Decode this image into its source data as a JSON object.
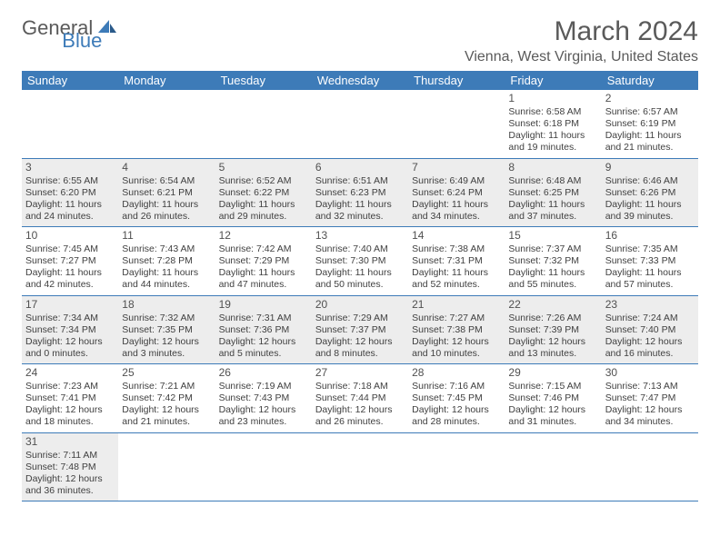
{
  "logo": {
    "general": "General",
    "blue": "Blue"
  },
  "title": "March 2024",
  "location": "Vienna, West Virginia, United States",
  "colors": {
    "header_bg": "#3d7bb8",
    "header_text": "#ffffff",
    "body_text": "#404040",
    "shaded_bg": "#ededed",
    "border": "#3d7bb8",
    "title_color": "#5a5a5a"
  },
  "weekdays": [
    "Sunday",
    "Monday",
    "Tuesday",
    "Wednesday",
    "Thursday",
    "Friday",
    "Saturday"
  ],
  "weeks": [
    [
      {
        "n": "",
        "shaded": false
      },
      {
        "n": "",
        "shaded": false
      },
      {
        "n": "",
        "shaded": false
      },
      {
        "n": "",
        "shaded": false
      },
      {
        "n": "",
        "shaded": false
      },
      {
        "n": "1",
        "shaded": false,
        "sunrise": "6:58 AM",
        "sunset": "6:18 PM",
        "daylight": "11 hours and 19 minutes."
      },
      {
        "n": "2",
        "shaded": false,
        "sunrise": "6:57 AM",
        "sunset": "6:19 PM",
        "daylight": "11 hours and 21 minutes."
      }
    ],
    [
      {
        "n": "3",
        "shaded": true,
        "sunrise": "6:55 AM",
        "sunset": "6:20 PM",
        "daylight": "11 hours and 24 minutes."
      },
      {
        "n": "4",
        "shaded": true,
        "sunrise": "6:54 AM",
        "sunset": "6:21 PM",
        "daylight": "11 hours and 26 minutes."
      },
      {
        "n": "5",
        "shaded": true,
        "sunrise": "6:52 AM",
        "sunset": "6:22 PM",
        "daylight": "11 hours and 29 minutes."
      },
      {
        "n": "6",
        "shaded": true,
        "sunrise": "6:51 AM",
        "sunset": "6:23 PM",
        "daylight": "11 hours and 32 minutes."
      },
      {
        "n": "7",
        "shaded": true,
        "sunrise": "6:49 AM",
        "sunset": "6:24 PM",
        "daylight": "11 hours and 34 minutes."
      },
      {
        "n": "8",
        "shaded": true,
        "sunrise": "6:48 AM",
        "sunset": "6:25 PM",
        "daylight": "11 hours and 37 minutes."
      },
      {
        "n": "9",
        "shaded": true,
        "sunrise": "6:46 AM",
        "sunset": "6:26 PM",
        "daylight": "11 hours and 39 minutes."
      }
    ],
    [
      {
        "n": "10",
        "shaded": false,
        "sunrise": "7:45 AM",
        "sunset": "7:27 PM",
        "daylight": "11 hours and 42 minutes."
      },
      {
        "n": "11",
        "shaded": false,
        "sunrise": "7:43 AM",
        "sunset": "7:28 PM",
        "daylight": "11 hours and 44 minutes."
      },
      {
        "n": "12",
        "shaded": false,
        "sunrise": "7:42 AM",
        "sunset": "7:29 PM",
        "daylight": "11 hours and 47 minutes."
      },
      {
        "n": "13",
        "shaded": false,
        "sunrise": "7:40 AM",
        "sunset": "7:30 PM",
        "daylight": "11 hours and 50 minutes."
      },
      {
        "n": "14",
        "shaded": false,
        "sunrise": "7:38 AM",
        "sunset": "7:31 PM",
        "daylight": "11 hours and 52 minutes."
      },
      {
        "n": "15",
        "shaded": false,
        "sunrise": "7:37 AM",
        "sunset": "7:32 PM",
        "daylight": "11 hours and 55 minutes."
      },
      {
        "n": "16",
        "shaded": false,
        "sunrise": "7:35 AM",
        "sunset": "7:33 PM",
        "daylight": "11 hours and 57 minutes."
      }
    ],
    [
      {
        "n": "17",
        "shaded": true,
        "sunrise": "7:34 AM",
        "sunset": "7:34 PM",
        "daylight": "12 hours and 0 minutes."
      },
      {
        "n": "18",
        "shaded": true,
        "sunrise": "7:32 AM",
        "sunset": "7:35 PM",
        "daylight": "12 hours and 3 minutes."
      },
      {
        "n": "19",
        "shaded": true,
        "sunrise": "7:31 AM",
        "sunset": "7:36 PM",
        "daylight": "12 hours and 5 minutes."
      },
      {
        "n": "20",
        "shaded": true,
        "sunrise": "7:29 AM",
        "sunset": "7:37 PM",
        "daylight": "12 hours and 8 minutes."
      },
      {
        "n": "21",
        "shaded": true,
        "sunrise": "7:27 AM",
        "sunset": "7:38 PM",
        "daylight": "12 hours and 10 minutes."
      },
      {
        "n": "22",
        "shaded": true,
        "sunrise": "7:26 AM",
        "sunset": "7:39 PM",
        "daylight": "12 hours and 13 minutes."
      },
      {
        "n": "23",
        "shaded": true,
        "sunrise": "7:24 AM",
        "sunset": "7:40 PM",
        "daylight": "12 hours and 16 minutes."
      }
    ],
    [
      {
        "n": "24",
        "shaded": false,
        "sunrise": "7:23 AM",
        "sunset": "7:41 PM",
        "daylight": "12 hours and 18 minutes."
      },
      {
        "n": "25",
        "shaded": false,
        "sunrise": "7:21 AM",
        "sunset": "7:42 PM",
        "daylight": "12 hours and 21 minutes."
      },
      {
        "n": "26",
        "shaded": false,
        "sunrise": "7:19 AM",
        "sunset": "7:43 PM",
        "daylight": "12 hours and 23 minutes."
      },
      {
        "n": "27",
        "shaded": false,
        "sunrise": "7:18 AM",
        "sunset": "7:44 PM",
        "daylight": "12 hours and 26 minutes."
      },
      {
        "n": "28",
        "shaded": false,
        "sunrise": "7:16 AM",
        "sunset": "7:45 PM",
        "daylight": "12 hours and 28 minutes."
      },
      {
        "n": "29",
        "shaded": false,
        "sunrise": "7:15 AM",
        "sunset": "7:46 PM",
        "daylight": "12 hours and 31 minutes."
      },
      {
        "n": "30",
        "shaded": false,
        "sunrise": "7:13 AM",
        "sunset": "7:47 PM",
        "daylight": "12 hours and 34 minutes."
      }
    ],
    [
      {
        "n": "31",
        "shaded": true,
        "sunrise": "7:11 AM",
        "sunset": "7:48 PM",
        "daylight": "12 hours and 36 minutes."
      },
      {
        "n": "",
        "shaded": false
      },
      {
        "n": "",
        "shaded": false
      },
      {
        "n": "",
        "shaded": false
      },
      {
        "n": "",
        "shaded": false
      },
      {
        "n": "",
        "shaded": false
      },
      {
        "n": "",
        "shaded": false
      }
    ]
  ],
  "labels": {
    "sunrise": "Sunrise:",
    "sunset": "Sunset:",
    "daylight": "Daylight:"
  }
}
